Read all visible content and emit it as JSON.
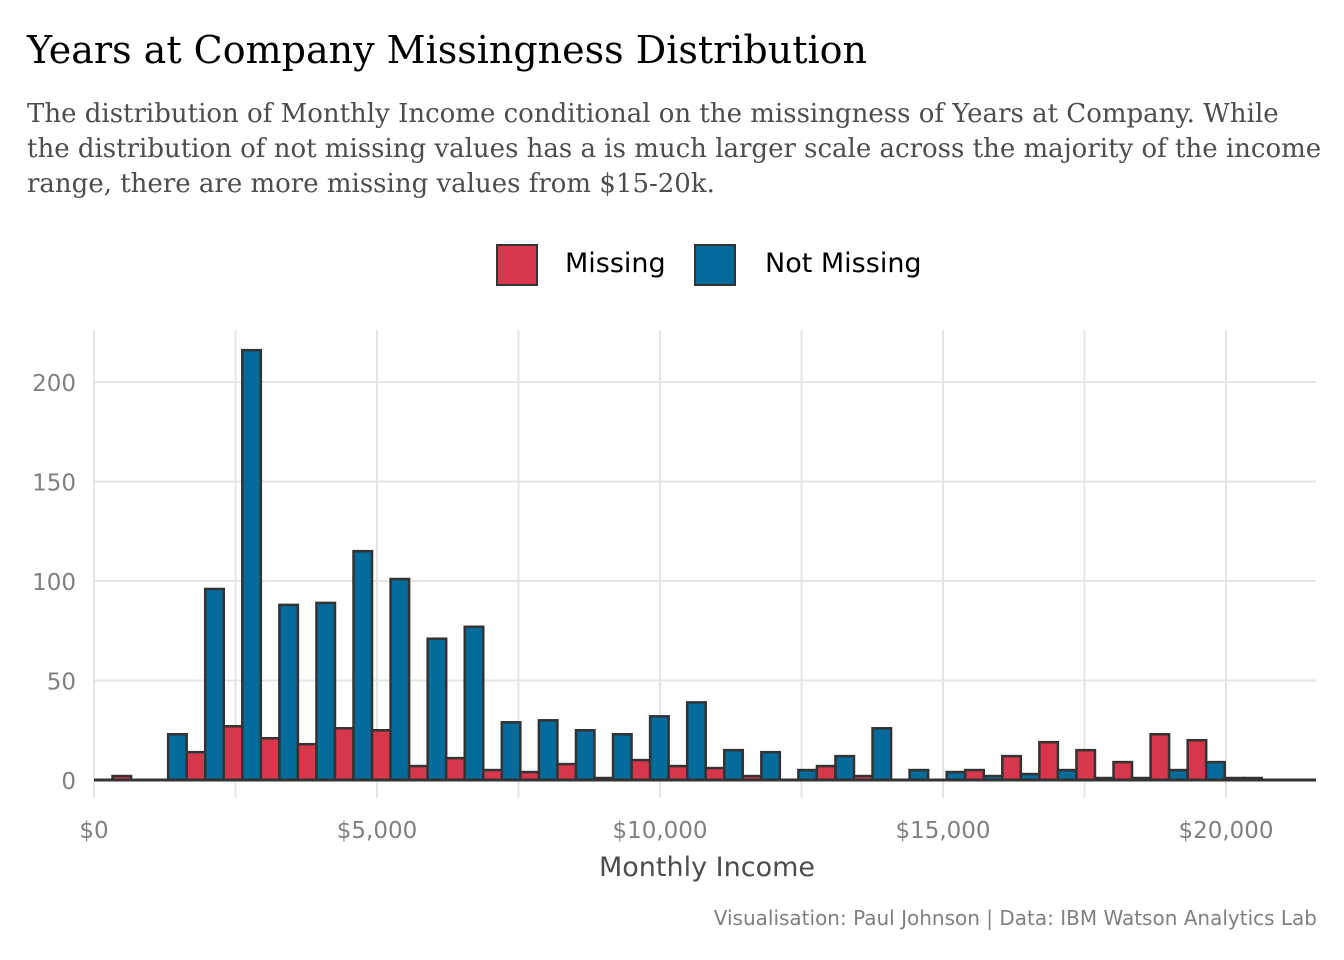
{
  "title": "Years at Company Missingness Distribution",
  "subtitle": "The distribution of Monthly Income conditional on the missingness of Years at Company. While the distribution of not missing values has a is much larger scale across the majority of the income range, there are more missing values from $15-20k.",
  "caption": "Visualisation: Paul Johnson  |  Data: IBM Watson Analytics Lab",
  "colors": {
    "missing": "#d7374d",
    "not_missing": "#046b9a",
    "outline": "#333333",
    "grid": "#e5e5e5",
    "axis_text": "#808080"
  },
  "legend": {
    "items": [
      {
        "label": "Missing",
        "color": "#d7374d"
      },
      {
        "label": "Not Missing",
        "color": "#046b9a"
      }
    ],
    "position": "top"
  },
  "chart_data": {
    "type": "bar",
    "xlabel": "Monthly Income",
    "ylabel": "",
    "xlim": [
      0,
      21600
    ],
    "ylim": [
      0,
      225
    ],
    "xticks": [
      0,
      5000,
      10000,
      15000,
      20000
    ],
    "xtick_labels": [
      "$0",
      "$5,000",
      "$10,000",
      "$15,000",
      "$20,000"
    ],
    "yticks": [
      0,
      50,
      100,
      150,
      200
    ],
    "ytick_labels": [
      "0",
      "50",
      "100",
      "150",
      "200"
    ],
    "grid": true,
    "bin_centers": [
      0,
      655,
      1310,
      1965,
      2620,
      3275,
      3930,
      4585,
      5240,
      5895,
      6550,
      7205,
      7860,
      8515,
      9170,
      9825,
      10480,
      11135,
      11790,
      12445,
      13100,
      13755,
      14410,
      15065,
      15720,
      16375,
      17030,
      17685,
      18340,
      18995,
      19650,
      20305,
      20960
    ],
    "series": [
      {
        "name": "Missing",
        "values": [
          0,
          2,
          0,
          14,
          27,
          21,
          18,
          26,
          25,
          7,
          11,
          5,
          4,
          8,
          1,
          10,
          7,
          6,
          2,
          0,
          7,
          2,
          0,
          0,
          5,
          12,
          19,
          15,
          9,
          23,
          20,
          1,
          0
        ]
      },
      {
        "name": "Not Missing",
        "values": [
          0,
          0,
          23,
          96,
          216,
          88,
          89,
          115,
          101,
          71,
          77,
          29,
          30,
          25,
          23,
          32,
          39,
          15,
          14,
          5,
          12,
          26,
          5,
          4,
          2,
          3,
          5,
          1,
          1,
          5,
          9,
          1,
          0
        ]
      }
    ]
  }
}
